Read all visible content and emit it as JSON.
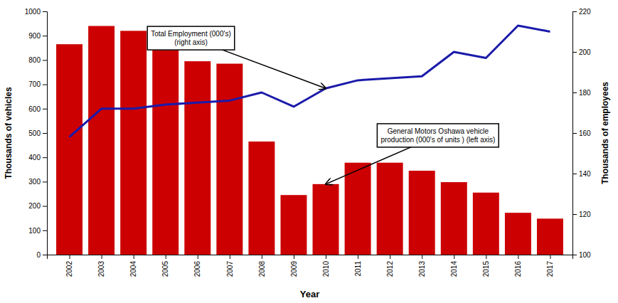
{
  "chart_data": {
    "type": "bar",
    "x_label": "Year",
    "y_label": "Thousands of vehicles",
    "y2_label": "Thousands of employees",
    "x": [
      2002,
      2003,
      2004,
      2005,
      2006,
      2007,
      2008,
      2009,
      2010,
      2011,
      2012,
      2013,
      2014,
      2015,
      2016,
      2017
    ],
    "xlim": [
      2001.3,
      2017.7
    ],
    "xticks": [
      2002,
      2003,
      2004,
      2005,
      2006,
      2007,
      2008,
      2009,
      2010,
      2011,
      2012,
      2013,
      2014,
      2015,
      2016,
      2017
    ],
    "ylim": [
      0,
      1000
    ],
    "yticks": [
      0,
      100,
      200,
      300,
      400,
      500,
      600,
      700,
      800,
      900,
      1000
    ],
    "y2lim": [
      100,
      220
    ],
    "y2ticks": [
      100,
      120,
      140,
      160,
      180,
      200,
      220
    ],
    "series": [
      {
        "type": "bar",
        "color": "#cc0000",
        "values": [
          865,
          940,
          920,
          840,
          795,
          785,
          465,
          245,
          290,
          378,
          378,
          345,
          298,
          255,
          172,
          148
        ]
      },
      {
        "type": "line",
        "axis": "y2",
        "color": "#1a1aaa",
        "values": [
          158,
          172,
          172,
          174,
          175,
          176,
          180,
          173,
          182,
          186,
          187,
          188,
          200,
          197,
          213,
          210
        ]
      }
    ],
    "annotations": [
      "Total Employment (000's)\n(right axis)",
      "General Motors Oshawa vehicle\nproduction (000's of units ) (left axis)"
    ]
  }
}
